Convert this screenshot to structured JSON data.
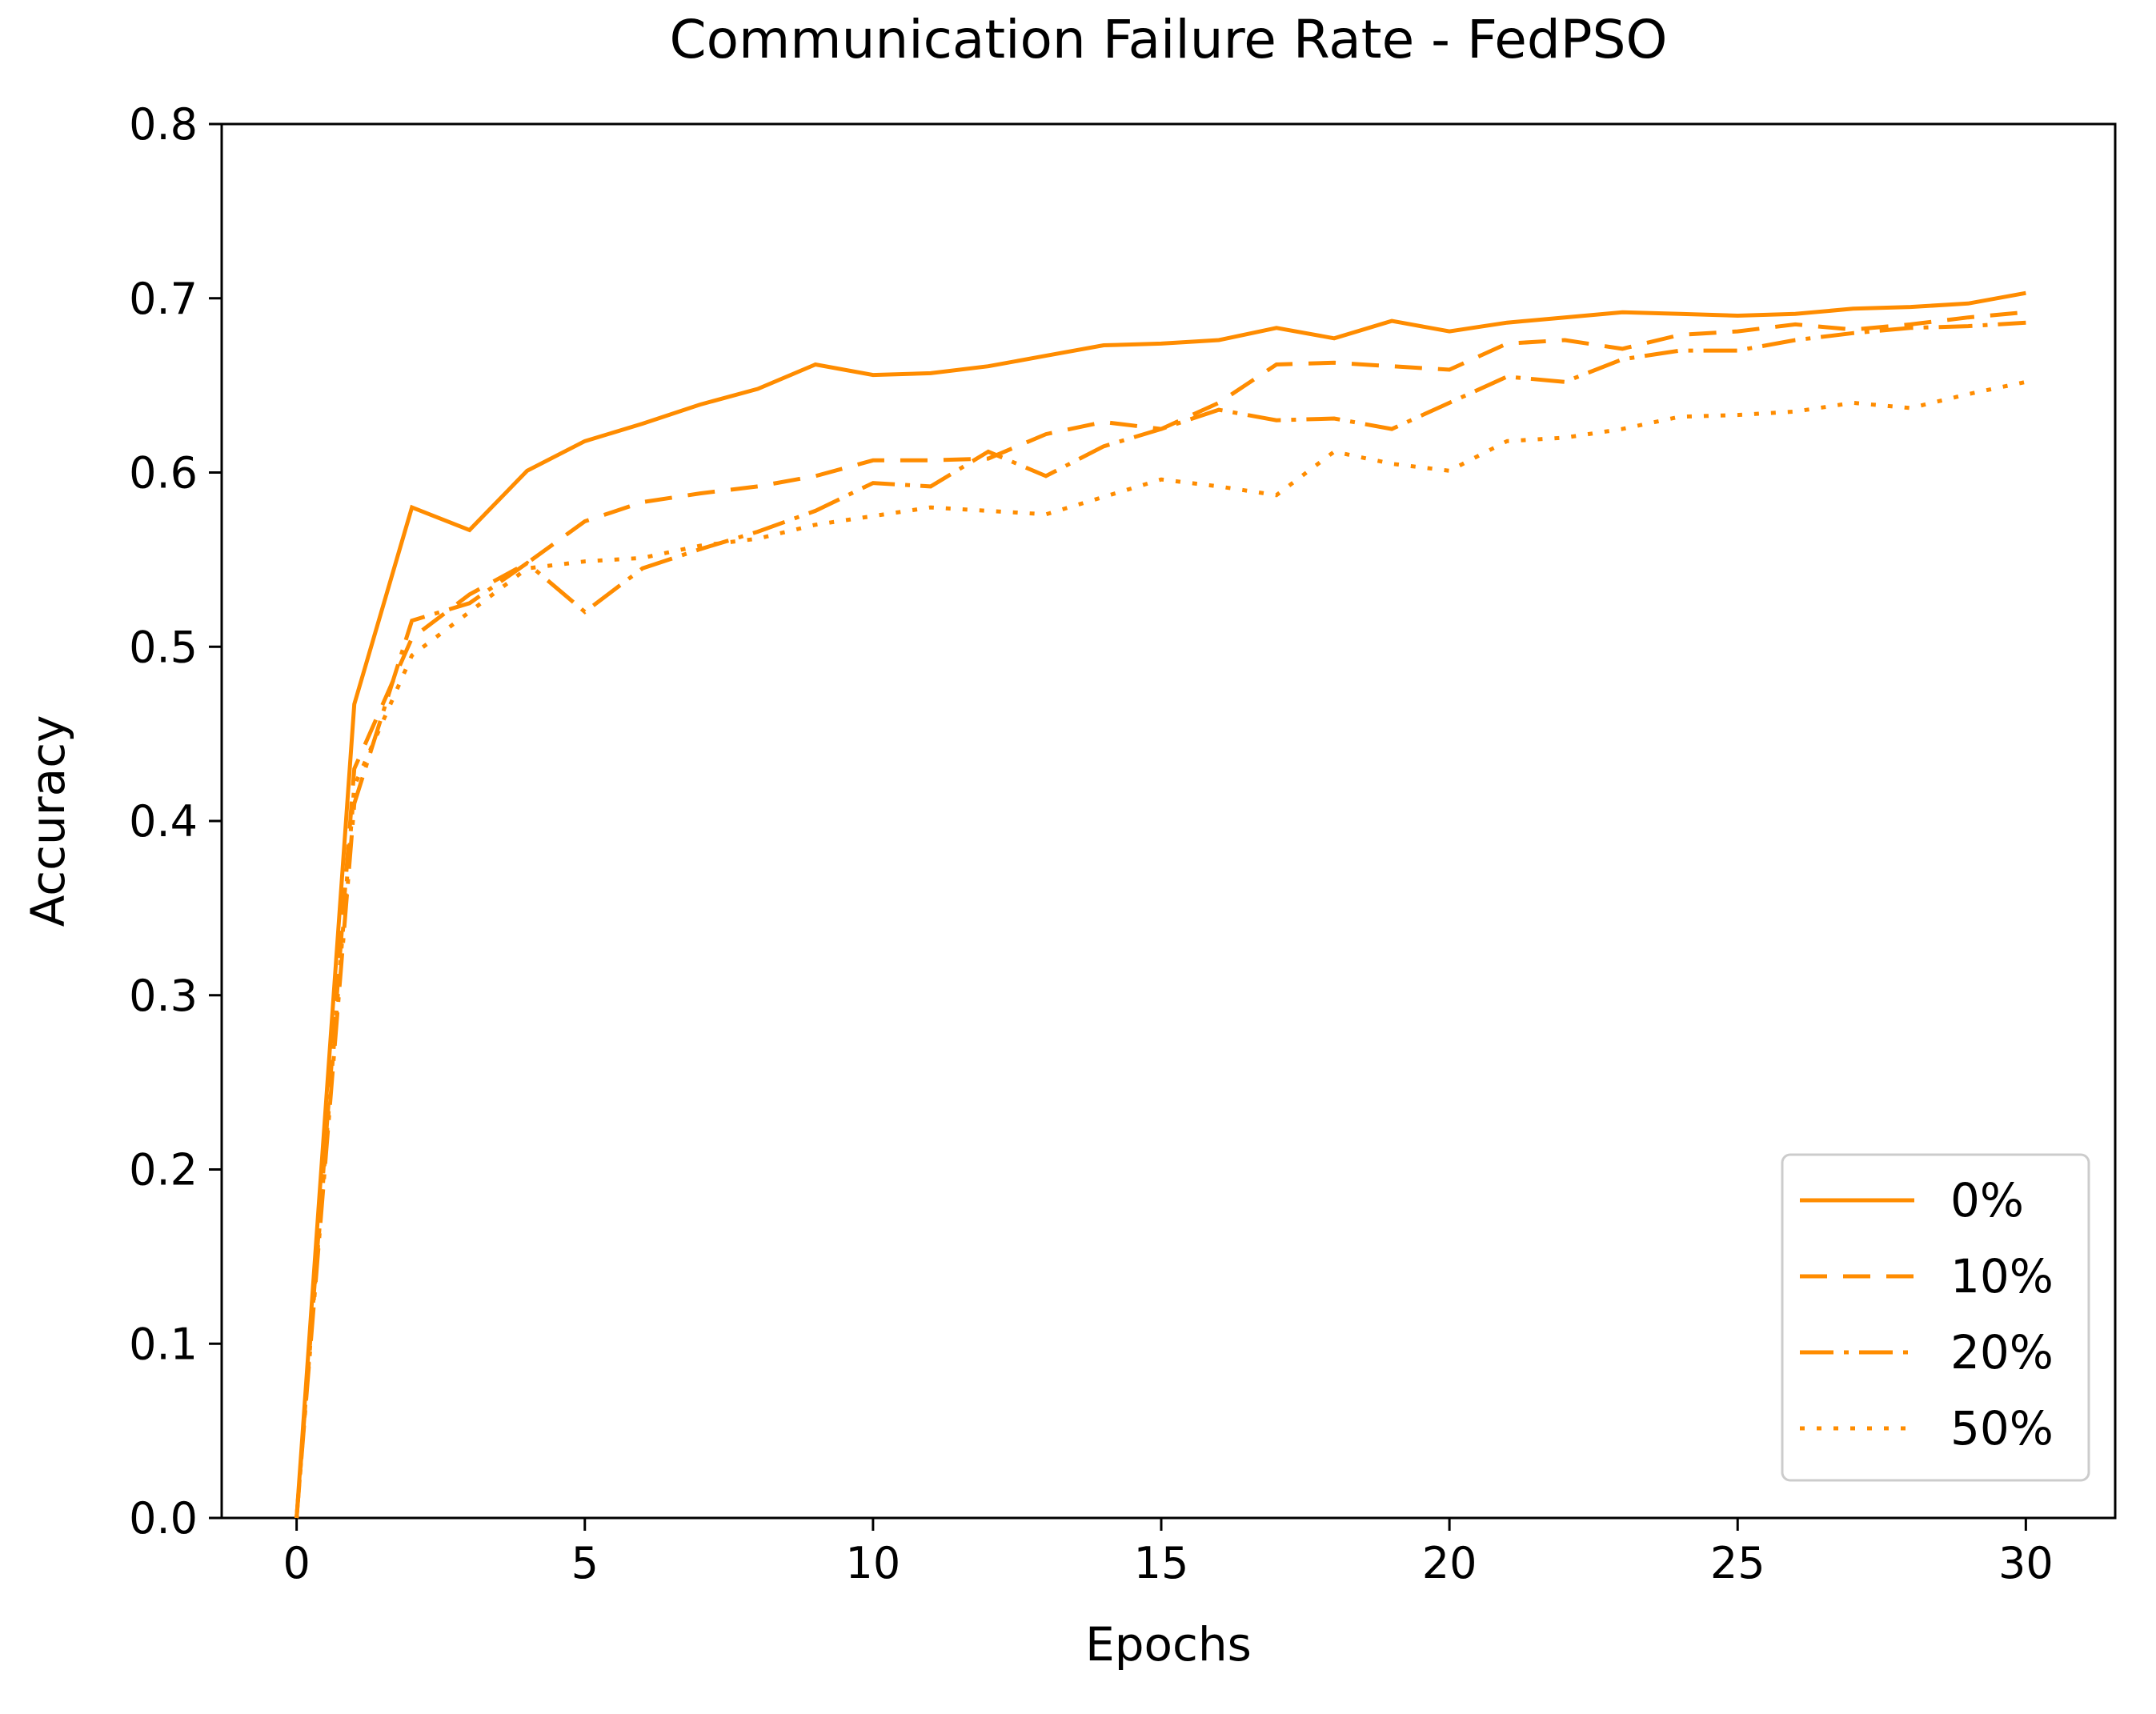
{
  "figure": {
    "background": "#ffffff"
  },
  "chart_data": {
    "type": "line",
    "title": "Communication Failure Rate - FedPSO",
    "xlabel": "Epochs",
    "ylabel": "Accuracy",
    "xlim": [
      -1.3,
      31.55
    ],
    "ylim": [
      0.0,
      0.8
    ],
    "x_ticks": [
      0,
      5,
      10,
      15,
      20,
      25,
      30
    ],
    "y_ticks": [
      "0.0",
      "0.1",
      "0.2",
      "0.3",
      "0.4",
      "0.5",
      "0.6",
      "0.7",
      "0.8"
    ],
    "grid": false,
    "line_color": "#FF8C00",
    "legend": {
      "position": "lower right",
      "entries": [
        "0%",
        "10%",
        "20%",
        "50%"
      ]
    },
    "x": [
      0,
      1,
      2,
      3,
      4,
      5,
      6,
      7,
      8,
      9,
      10,
      11,
      12,
      13,
      14,
      15,
      16,
      17,
      18,
      19,
      20,
      21,
      22,
      23,
      24,
      25,
      26,
      27,
      28,
      29,
      30
    ],
    "series": [
      {
        "name": "0%",
        "style": "solid",
        "values": [
          0.0,
          0.467,
          0.58,
          0.567,
          0.601,
          0.618,
          0.628,
          0.639,
          0.648,
          0.662,
          0.656,
          0.657,
          0.661,
          0.667,
          0.673,
          0.674,
          0.676,
          0.683,
          0.677,
          0.687,
          0.681,
          0.686,
          0.689,
          0.692,
          0.691,
          0.69,
          0.691,
          0.694,
          0.695,
          0.697,
          0.703
        ]
      },
      {
        "name": "10%",
        "style": "dashed",
        "values": [
          0.0,
          0.43,
          0.505,
          0.53,
          0.548,
          0.572,
          0.583,
          0.588,
          0.592,
          0.598,
          0.607,
          0.607,
          0.608,
          0.622,
          0.629,
          0.625,
          0.64,
          0.662,
          0.663,
          0.661,
          0.659,
          0.674,
          0.676,
          0.671,
          0.679,
          0.681,
          0.685,
          0.682,
          0.685,
          0.689,
          0.692
        ]
      },
      {
        "name": "20%",
        "style": "dashdot",
        "values": [
          0.0,
          0.41,
          0.515,
          0.525,
          0.548,
          0.52,
          0.545,
          0.556,
          0.566,
          0.578,
          0.594,
          0.592,
          0.612,
          0.598,
          0.615,
          0.625,
          0.636,
          0.63,
          0.631,
          0.625,
          0.64,
          0.655,
          0.652,
          0.665,
          0.67,
          0.67,
          0.676,
          0.68,
          0.683,
          0.684,
          0.686
        ]
      },
      {
        "name": "50%",
        "style": "dotted",
        "values": [
          0.0,
          0.42,
          0.495,
          0.52,
          0.545,
          0.549,
          0.551,
          0.558,
          0.562,
          0.57,
          0.575,
          0.58,
          0.578,
          0.576,
          0.586,
          0.596,
          0.592,
          0.587,
          0.612,
          0.605,
          0.601,
          0.618,
          0.62,
          0.625,
          0.632,
          0.633,
          0.635,
          0.64,
          0.637,
          0.645,
          0.652
        ]
      }
    ]
  }
}
